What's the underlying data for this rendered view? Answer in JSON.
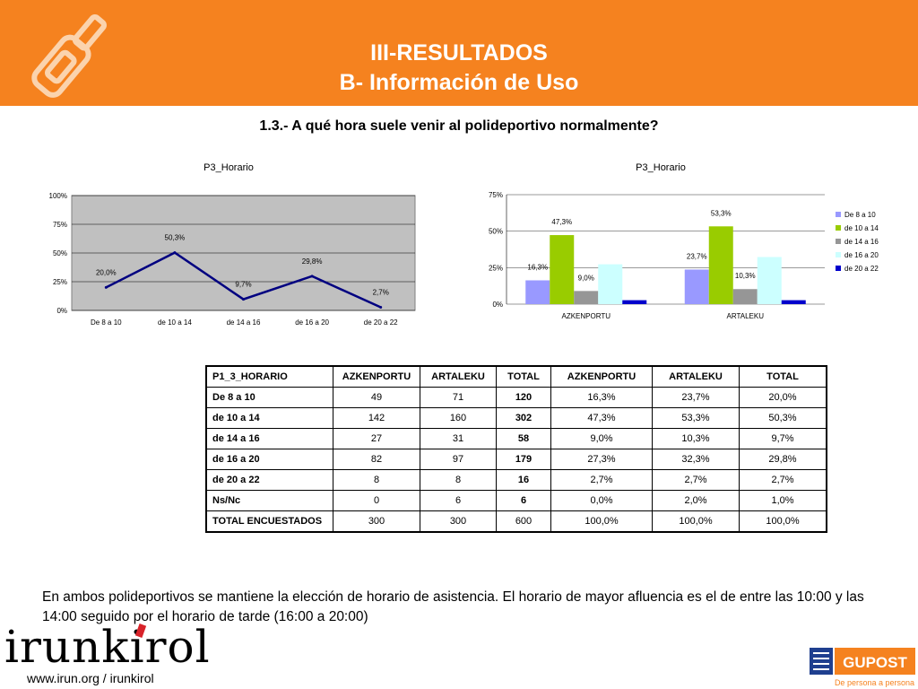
{
  "header": {
    "title": "III-RESULTADOS",
    "subtitle": "B- Información de Uso",
    "icon": "bottle-icon"
  },
  "question": "1.3.- A qué hora suele venir al polideportivo normalmente?",
  "chart_data": [
    {
      "type": "line",
      "title": "P3_Horario",
      "categories": [
        "De 8 a 10",
        "de 10 a 14",
        "de 14 a 16",
        "de 16 a 20",
        "de 20 a 22"
      ],
      "values": [
        20.0,
        50.3,
        9.7,
        29.8,
        2.7
      ],
      "value_labels": [
        "20,0%",
        "50,3%",
        "9,7%",
        "29,8%",
        "2,7%"
      ],
      "ylim": [
        0,
        100
      ],
      "yticks": [
        "0%",
        "25%",
        "50%",
        "75%",
        "100%"
      ],
      "grid": true,
      "line_color": "#000080",
      "plot_bg": "#c0c0c0"
    },
    {
      "type": "bar",
      "title": "P3_Horario",
      "categories": [
        "AZKENPORTU",
        "ARTALEKU"
      ],
      "ylim": [
        0,
        75
      ],
      "yticks": [
        "0%",
        "25%",
        "50%",
        "75%"
      ],
      "legend_position": "right",
      "series": [
        {
          "name": "De 8 a 10",
          "values": [
            16.3,
            23.7
          ],
          "labels": [
            "16,3%",
            "23,7%"
          ],
          "color": "#9999ff"
        },
        {
          "name": "de 10 a 14",
          "values": [
            47.3,
            53.3
          ],
          "labels": [
            "47,3%",
            "53,3%"
          ],
          "color": "#99cc00"
        },
        {
          "name": "de 14 a 16",
          "values": [
            9.0,
            10.3
          ],
          "labels": [
            "9,0%",
            "10,3%"
          ],
          "color": "#969696"
        },
        {
          "name": "de 16 a 20",
          "values": [
            27.3,
            32.3
          ],
          "labels": [
            "",
            ""
          ],
          "color": "#ccffff"
        },
        {
          "name": "de 20 a 22",
          "values": [
            2.7,
            2.7
          ],
          "labels": [
            "",
            ""
          ],
          "color": "#0000cc"
        }
      ]
    }
  ],
  "table": {
    "headers": [
      "P1_3_HORARIO",
      "AZKENPORTU",
      "ARTALEKU",
      "TOTAL",
      "AZKENPORTU",
      "ARTALEKU",
      "TOTAL"
    ],
    "rows": [
      [
        "De 8 a 10",
        "49",
        "71",
        "120",
        "16,3%",
        "23,7%",
        "20,0%"
      ],
      [
        "de 10 a 14",
        "142",
        "160",
        "302",
        "47,3%",
        "53,3%",
        "50,3%"
      ],
      [
        "de 14 a 16",
        "27",
        "31",
        "58",
        "9,0%",
        "10,3%",
        "9,7%"
      ],
      [
        "de 16 a 20",
        "82",
        "97",
        "179",
        "27,3%",
        "32,3%",
        "29,8%"
      ],
      [
        "de 20 a 22",
        "8",
        "8",
        "16",
        "2,7%",
        "2,7%",
        "2,7%"
      ],
      [
        "Ns/Nc",
        "0",
        "6",
        "6",
        "0,0%",
        "2,0%",
        "1,0%"
      ],
      [
        "TOTAL ENCUESTADOS",
        "300",
        "300",
        "600",
        "100,0%",
        "100,0%",
        "100,0%"
      ]
    ]
  },
  "summary": "En ambos polideportivos se mantiene la elección de horario de asistencia. El horario de mayor afluencia es el de entre las 10:00 y las 14:00 seguido por el horario de tarde (16:00 a 20:00)",
  "footer": {
    "brand": "irunkirol",
    "url": "www.irun.org / irunkirol",
    "partner_logo": "GUPOST",
    "partner_tagline": "De persona a persona"
  },
  "colors": {
    "header_bg": "#f5821f",
    "brand_red": "#d8232a",
    "partner_orange": "#f5821f"
  }
}
